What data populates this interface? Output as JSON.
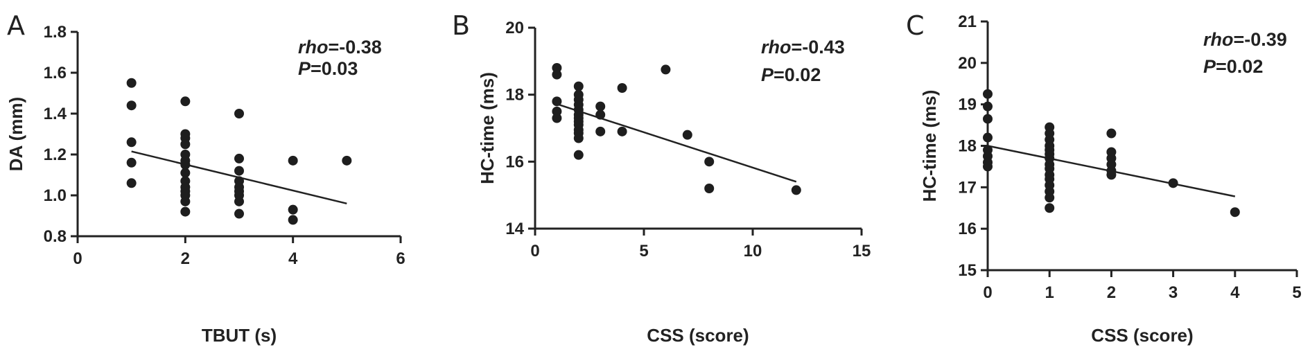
{
  "chart_data": [
    {
      "type": "scatter",
      "panel_label": "A",
      "xlabel": "TBUT (s)",
      "ylabel": "DA (mm)",
      "xlim": [
        0,
        6
      ],
      "ylim": [
        0.8,
        1.8
      ],
      "xticks": [
        0,
        2,
        4,
        6
      ],
      "yticks": [
        0.8,
        1.0,
        1.2,
        1.4,
        1.6,
        1.8
      ],
      "y_decimals": 1,
      "stats": {
        "rho_label": "rho",
        "rho_value": "=-0.38",
        "p_label": "P",
        "p_value": "=0.03"
      },
      "fit_line": {
        "x": [
          1,
          5
        ],
        "y": [
          1.215,
          0.96
        ]
      },
      "points": [
        [
          1,
          1.55
        ],
        [
          1,
          1.44
        ],
        [
          1,
          1.26
        ],
        [
          1,
          1.16
        ],
        [
          1,
          1.06
        ],
        [
          2,
          1.46
        ],
        [
          2,
          1.3
        ],
        [
          2,
          1.28
        ],
        [
          2,
          1.25
        ],
        [
          2,
          1.2
        ],
        [
          2,
          1.17
        ],
        [
          2,
          1.15
        ],
        [
          2,
          1.11
        ],
        [
          2,
          1.07
        ],
        [
          2,
          1.04
        ],
        [
          2,
          1.02
        ],
        [
          2,
          1.0
        ],
        [
          2,
          0.97
        ],
        [
          2,
          0.92
        ],
        [
          3,
          1.4
        ],
        [
          3,
          1.18
        ],
        [
          3,
          1.12
        ],
        [
          3,
          1.07
        ],
        [
          3,
          1.04
        ],
        [
          3,
          1.02
        ],
        [
          3,
          1.0
        ],
        [
          3,
          0.97
        ],
        [
          3,
          0.91
        ],
        [
          4,
          1.17
        ],
        [
          4,
          0.93
        ],
        [
          4,
          0.88
        ],
        [
          5,
          1.17
        ]
      ]
    },
    {
      "type": "scatter",
      "panel_label": "B",
      "xlabel": "CSS (score)",
      "ylabel": "HC-time (ms)",
      "xlim": [
        0,
        15
      ],
      "ylim": [
        14,
        20
      ],
      "xticks": [
        0,
        5,
        10,
        15
      ],
      "yticks": [
        14,
        16,
        18,
        20
      ],
      "y_decimals": 0,
      "stats": {
        "rho_label": "rho",
        "rho_value": "=-0.43",
        "p_label": "P",
        "p_value": "=0.02"
      },
      "fit_line": {
        "x": [
          1,
          12
        ],
        "y": [
          17.72,
          15.4
        ]
      },
      "points": [
        [
          1,
          18.8
        ],
        [
          1,
          18.6
        ],
        [
          1,
          17.8
        ],
        [
          1,
          17.5
        ],
        [
          1,
          17.3
        ],
        [
          2,
          18.25
        ],
        [
          2,
          18.0
        ],
        [
          2,
          17.85
        ],
        [
          2,
          17.7
        ],
        [
          2,
          17.55
        ],
        [
          2,
          17.4
        ],
        [
          2,
          17.3
        ],
        [
          2,
          17.2
        ],
        [
          2,
          17.1
        ],
        [
          2,
          16.95
        ],
        [
          2,
          16.85
        ],
        [
          2,
          16.7
        ],
        [
          2,
          16.2
        ],
        [
          3,
          17.65
        ],
        [
          3,
          17.4
        ],
        [
          3,
          16.9
        ],
        [
          4,
          18.2
        ],
        [
          4,
          16.9
        ],
        [
          6,
          18.75
        ],
        [
          7,
          16.8
        ],
        [
          8,
          16.0
        ],
        [
          8,
          15.2
        ],
        [
          12,
          15.15
        ]
      ]
    },
    {
      "type": "scatter",
      "panel_label": "C",
      "xlabel": "CSS (score)",
      "ylabel": "HC-time (ms)",
      "xlim": [
        0,
        5
      ],
      "ylim": [
        15,
        21
      ],
      "xticks": [
        0,
        1,
        2,
        3,
        4,
        5
      ],
      "yticks": [
        15,
        16,
        17,
        18,
        19,
        20,
        21
      ],
      "y_decimals": 0,
      "stats": {
        "rho_label": "rho",
        "rho_value": "=-0.39",
        "p_label": "P",
        "p_value": "=0.02"
      },
      "fit_line": {
        "x": [
          0,
          4
        ],
        "y": [
          18.0,
          16.78
        ]
      },
      "points": [
        [
          0,
          19.25
        ],
        [
          0,
          18.95
        ],
        [
          0,
          18.65
        ],
        [
          0,
          18.2
        ],
        [
          0,
          17.9
        ],
        [
          0,
          17.75
        ],
        [
          0,
          17.6
        ],
        [
          0,
          17.5
        ],
        [
          1,
          18.45
        ],
        [
          1,
          18.3
        ],
        [
          1,
          18.15
        ],
        [
          1,
          18.0
        ],
        [
          1,
          17.9
        ],
        [
          1,
          17.8
        ],
        [
          1,
          17.7
        ],
        [
          1,
          17.55
        ],
        [
          1,
          17.45
        ],
        [
          1,
          17.3
        ],
        [
          1,
          17.2
        ],
        [
          1,
          17.05
        ],
        [
          1,
          16.9
        ],
        [
          1,
          16.75
        ],
        [
          1,
          16.5
        ],
        [
          2,
          18.3
        ],
        [
          2,
          17.85
        ],
        [
          2,
          17.7
        ],
        [
          2,
          17.55
        ],
        [
          2,
          17.4
        ],
        [
          2,
          17.3
        ],
        [
          3,
          17.1
        ],
        [
          4,
          16.4
        ]
      ]
    }
  ]
}
